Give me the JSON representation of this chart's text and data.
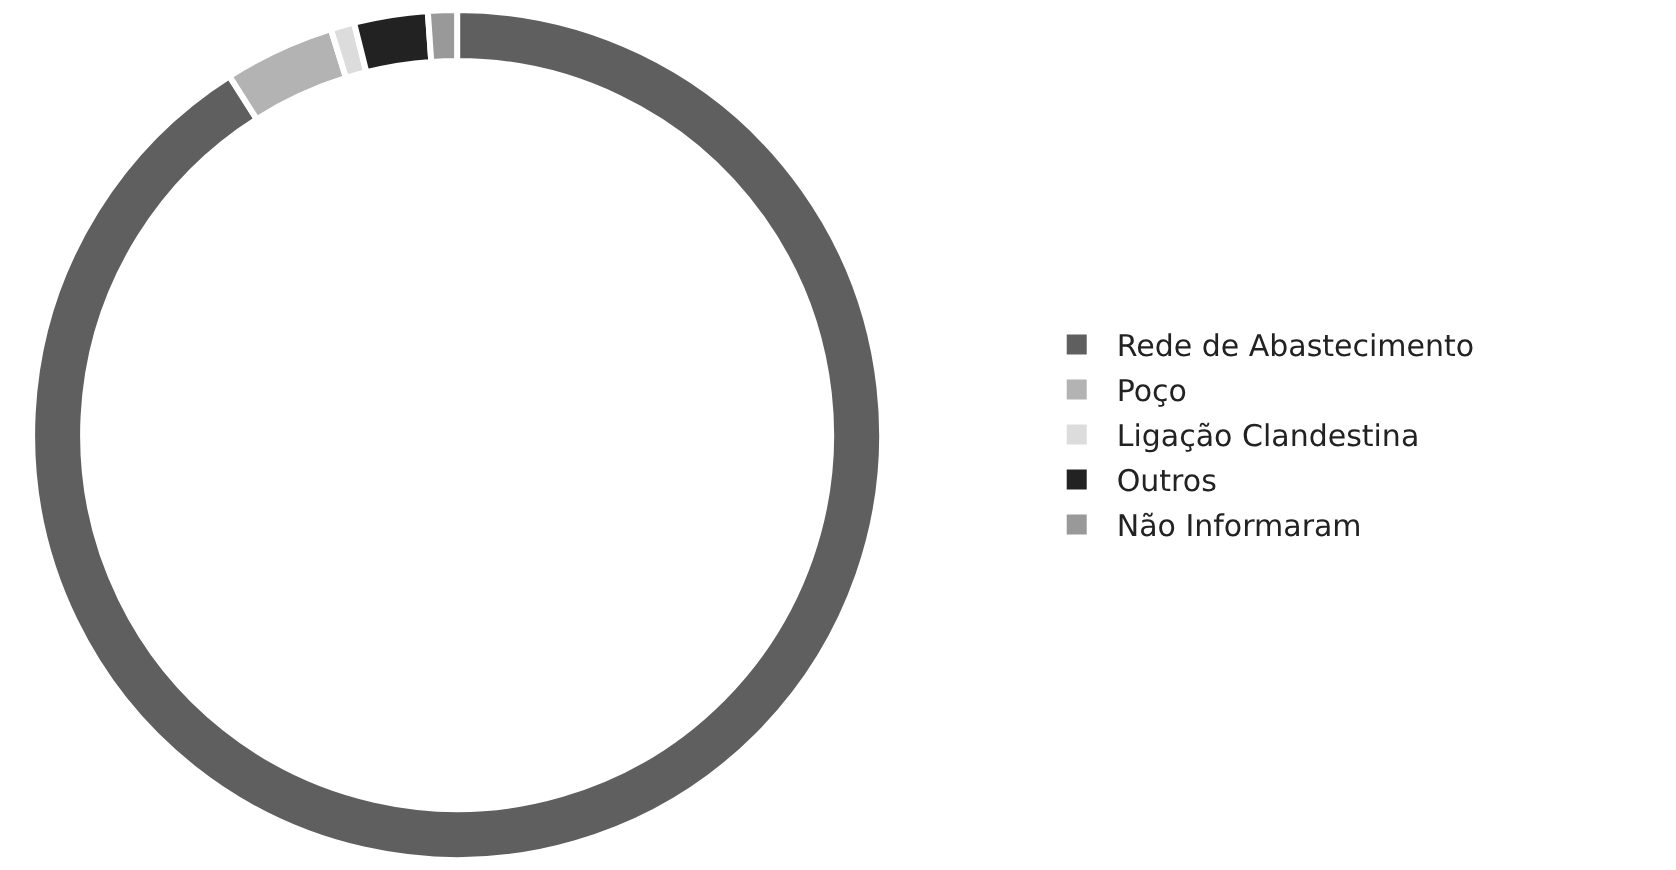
{
  "chart_data": {
    "type": "donut",
    "categories": [
      "Rede de Abastecimento",
      "Poço",
      "Ligação Clandestina",
      "Outros",
      "Não Informaram"
    ],
    "values": [
      91.0,
      4.2,
      0.9,
      2.8,
      1.1
    ],
    "colors": [
      "#5f5f5f",
      "#b3b3b3",
      "#dcdcdc",
      "#222222",
      "#999999"
    ],
    "legend": "right"
  }
}
